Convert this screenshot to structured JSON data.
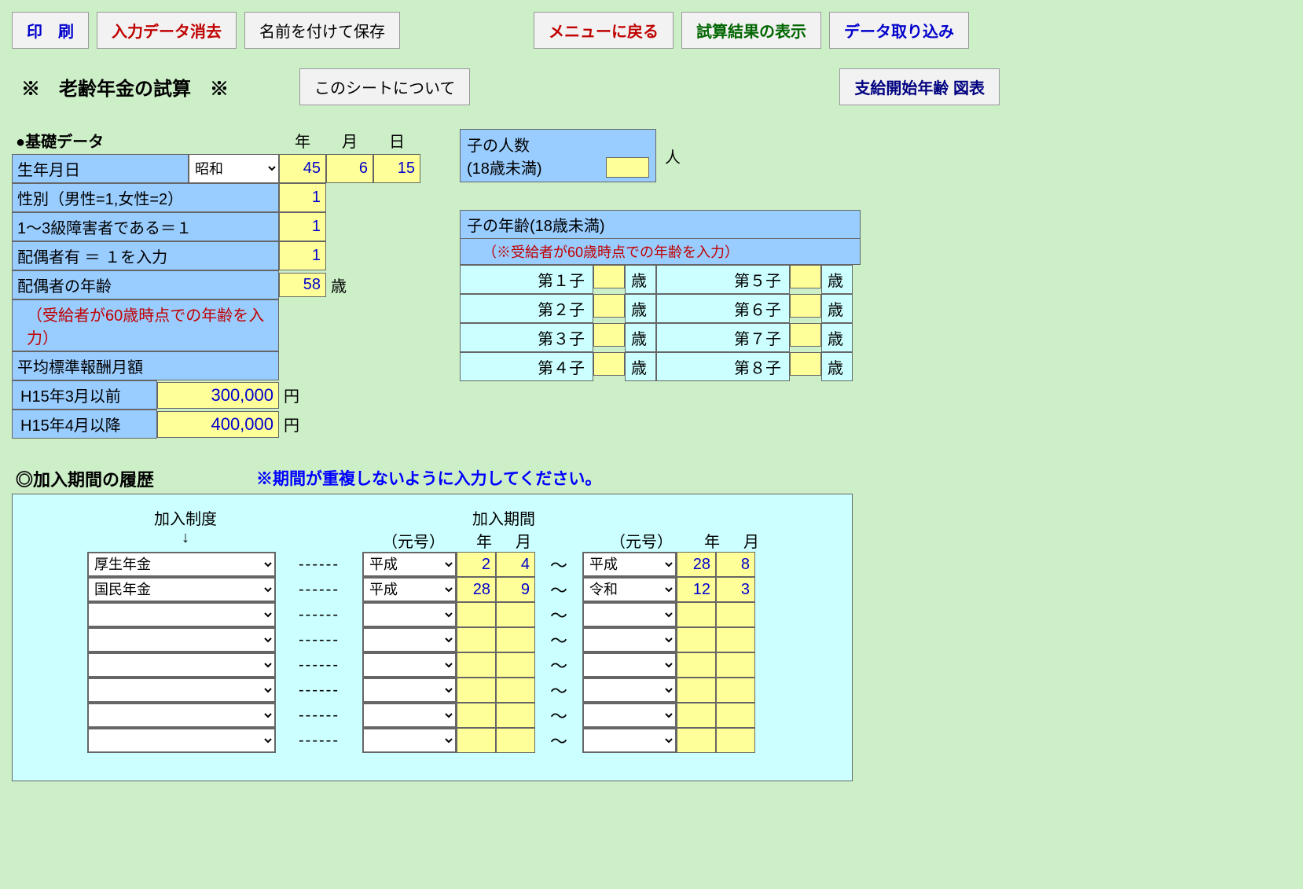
{
  "toolbar": {
    "print": "印　刷",
    "clear": "入力データ消去",
    "save": "名前を付けて保存",
    "menu": "メニューに戻る",
    "result": "試算結果の表示",
    "import": "データ取り込み"
  },
  "title": "※　老齢年金の試算　※",
  "about_btn": "このシートについて",
  "age_chart_btn": "支給開始年齢 図表",
  "base": {
    "head": "●基礎データ",
    "year_h": "年",
    "month_h": "月",
    "day_h": "日",
    "birth_label": "生年月日",
    "era": "昭和",
    "y": "45",
    "m": "6",
    "d": "15",
    "sex_label": "性別（男性=1,女性=2）",
    "sex": "1",
    "disab_label": "1～3級障害者である＝１",
    "disab": "1",
    "spouse_label": "配偶者有 ＝ １を入力",
    "spouse": "1",
    "spouse_age_label": "配偶者の年齢",
    "spouse_age": "58",
    "sai": "歳",
    "spouse_note": "（受給者が60歳時点での年齢を入力）",
    "salary_label": "平均標準報酬月額",
    "before_label": "H15年3月以前",
    "before_val": "300,000",
    "after_label": "H15年4月以降",
    "after_val": "400,000",
    "yen": "円"
  },
  "children": {
    "count_head": "子の人数",
    "count_sub": "(18歳未満)",
    "count_unit": "人",
    "age_head": "子の年齢(18歳未満)",
    "age_note": "（※受給者が60歳時点での年齢を入力）",
    "c1": "第１子",
    "c2": "第２子",
    "c3": "第３子",
    "c4": "第４子",
    "c5": "第５子",
    "c6": "第６子",
    "c7": "第７子",
    "c8": "第８子",
    "sai": "歳"
  },
  "history": {
    "head": "◎加入期間の履歴",
    "note": "※期間が重複しないように入力してください。",
    "col_system": "加入制度",
    "arrow": "↓",
    "col_period": "加入期間",
    "era_h": "（元号）",
    "year_h": "年",
    "month_h": "月",
    "tilde": "～",
    "dashes": "------",
    "rows": [
      {
        "sys": "厚生年金",
        "era1": "平成",
        "y1": "2",
        "m1": "4",
        "era2": "平成",
        "y2": "28",
        "m2": "8"
      },
      {
        "sys": "国民年金",
        "era1": "平成",
        "y1": "28",
        "m1": "9",
        "era2": "令和",
        "y2": "12",
        "m2": "3"
      },
      {
        "sys": "",
        "era1": "",
        "y1": "",
        "m1": "",
        "era2": "",
        "y2": "",
        "m2": ""
      },
      {
        "sys": "",
        "era1": "",
        "y1": "",
        "m1": "",
        "era2": "",
        "y2": "",
        "m2": ""
      },
      {
        "sys": "",
        "era1": "",
        "y1": "",
        "m1": "",
        "era2": "",
        "y2": "",
        "m2": ""
      },
      {
        "sys": "",
        "era1": "",
        "y1": "",
        "m1": "",
        "era2": "",
        "y2": "",
        "m2": ""
      },
      {
        "sys": "",
        "era1": "",
        "y1": "",
        "m1": "",
        "era2": "",
        "y2": "",
        "m2": ""
      },
      {
        "sys": "",
        "era1": "",
        "y1": "",
        "m1": "",
        "era2": "",
        "y2": "",
        "m2": ""
      }
    ]
  }
}
